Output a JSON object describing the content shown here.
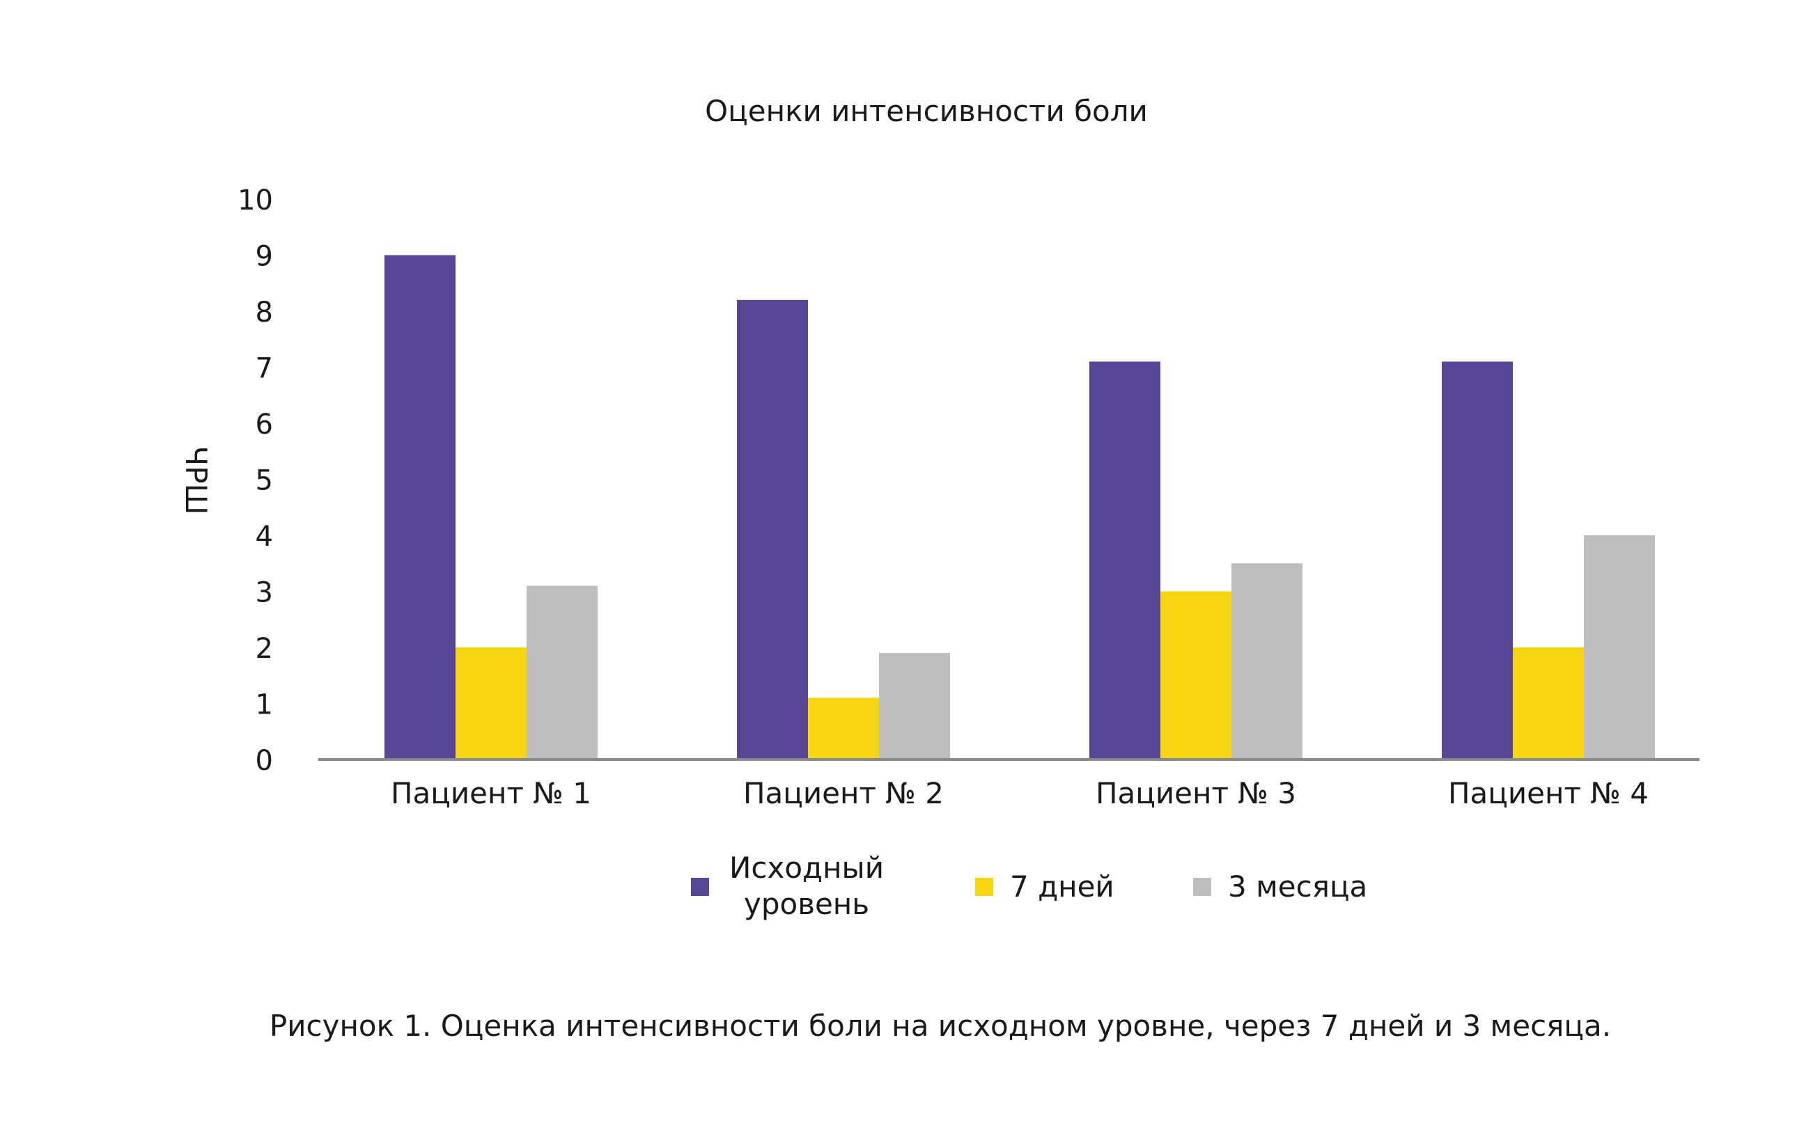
{
  "chart_data": {
    "type": "bar",
    "title": "Оценки интенсивности боли",
    "ylabel": "ЧРШ",
    "xlabel": "",
    "ylim": [
      0,
      10
    ],
    "yticks": [
      "0",
      "1",
      "2",
      "3",
      "4",
      "5",
      "6",
      "7",
      "8",
      "9",
      "10"
    ],
    "categories": [
      "Пациент № 1",
      "Пациент № 2",
      "Пациент № 3",
      "Пациент № 4"
    ],
    "series": [
      {
        "name": "Исходный уровень",
        "legend_lines": [
          "Исходный",
          "уровень"
        ],
        "color": "#574696",
        "values": [
          9,
          8.2,
          7.1,
          7.1
        ]
      },
      {
        "name": "7 дней",
        "legend_lines": [
          "7 дней"
        ],
        "color": "#F8D513",
        "values": [
          2,
          1.1,
          3,
          2
        ]
      },
      {
        "name": "3 месяца",
        "legend_lines": [
          "3 месяца"
        ],
        "color": "#BEBEBE",
        "values": [
          3.1,
          1.9,
          3.5,
          4
        ]
      }
    ],
    "grid": false,
    "legend_position": "bottom"
  },
  "caption": "Рисунок 1. Оценка интенсивности боли на исходном уровне, через 7 дней и 3 месяца."
}
